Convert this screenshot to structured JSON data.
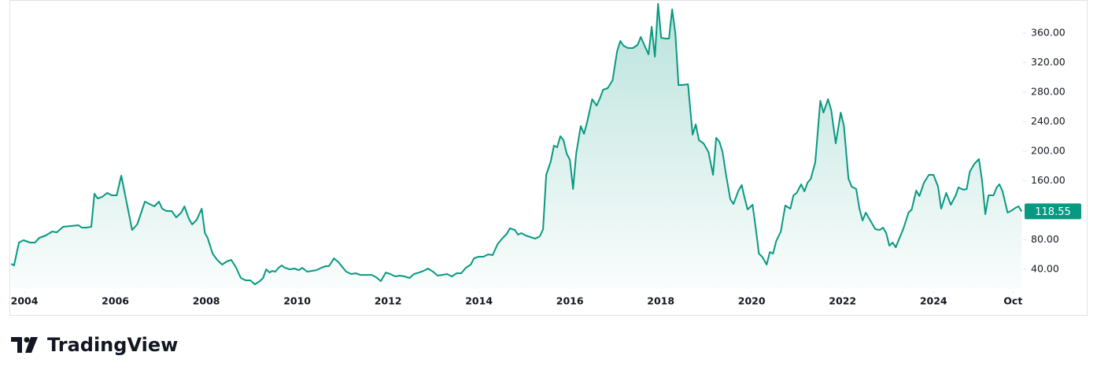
{
  "chart_data": {
    "type": "area",
    "x": [
      2003.71,
      2003.77,
      2003.88,
      2003.98,
      2004.12,
      2004.23,
      2004.33,
      2004.47,
      2004.61,
      2004.71,
      2004.85,
      2005.02,
      2005.19,
      2005.26,
      2005.37,
      2005.47,
      2005.54,
      2005.61,
      2005.71,
      2005.82,
      2005.92,
      2006.03,
      2006.13,
      2006.23,
      2006.37,
      2006.48,
      2006.58,
      2006.65,
      2006.75,
      2006.86,
      2006.96,
      2007.03,
      2007.13,
      2007.24,
      2007.34,
      2007.45,
      2007.52,
      2007.62,
      2007.69,
      2007.79,
      2007.9,
      2007.97,
      2008.03,
      2008.14,
      2008.24,
      2008.35,
      2008.45,
      2008.55,
      2008.66,
      2008.76,
      2008.87,
      2008.97,
      2009.07,
      2009.18,
      2009.25,
      2009.32,
      2009.39,
      2009.45,
      2009.52,
      2009.59,
      2009.66,
      2009.73,
      2009.84,
      2009.94,
      2010.04,
      2010.11,
      2010.22,
      2010.32,
      2010.42,
      2010.53,
      2010.63,
      2010.7,
      2010.81,
      2010.91,
      2011.01,
      2011.08,
      2011.19,
      2011.29,
      2011.39,
      2011.5,
      2011.64,
      2011.74,
      2011.84,
      2011.95,
      2012.05,
      2012.16,
      2012.26,
      2012.36,
      2012.47,
      2012.57,
      2012.68,
      2012.78,
      2012.88,
      2012.99,
      2013.09,
      2013.19,
      2013.3,
      2013.4,
      2013.51,
      2013.61,
      2013.71,
      2013.82,
      2013.89,
      2013.99,
      2014.1,
      2014.2,
      2014.3,
      2014.41,
      2014.51,
      2014.61,
      2014.68,
      2014.79,
      2014.86,
      2014.93,
      2015.03,
      2015.13,
      2015.24,
      2015.34,
      2015.41,
      2015.48,
      2015.58,
      2015.65,
      2015.72,
      2015.79,
      2015.86,
      2015.93,
      2016.0,
      2016.07,
      2016.14,
      2016.24,
      2016.31,
      2016.38,
      2016.49,
      2016.59,
      2016.66,
      2016.73,
      2016.83,
      2016.94,
      2017.04,
      2017.11,
      2017.18,
      2017.28,
      2017.39,
      2017.49,
      2017.56,
      2017.66,
      2017.73,
      2017.8,
      2017.87,
      2017.94,
      2018.01,
      2018.11,
      2018.18,
      2018.25,
      2018.32,
      2018.39,
      2018.46,
      2018.6,
      2018.7,
      2018.77,
      2018.84,
      2018.94,
      2019.05,
      2019.15,
      2019.22,
      2019.29,
      2019.36,
      2019.43,
      2019.53,
      2019.6,
      2019.71,
      2019.78,
      2019.84,
      2019.91,
      2020.02,
      2020.09,
      2020.16,
      2020.23,
      2020.33,
      2020.4,
      2020.47,
      2020.54,
      2020.64,
      2020.74,
      2020.85,
      2020.92,
      2020.99,
      2021.09,
      2021.16,
      2021.23,
      2021.3,
      2021.4,
      2021.51,
      2021.58,
      2021.68,
      2021.75,
      2021.85,
      2021.96,
      2022.03,
      2022.13,
      2022.2,
      2022.3,
      2022.37,
      2022.44,
      2022.51,
      2022.62,
      2022.72,
      2022.82,
      2022.89,
      2022.96,
      2023.03,
      2023.1,
      2023.17,
      2023.24,
      2023.34,
      2023.45,
      2023.52,
      2023.62,
      2023.69,
      2023.79,
      2023.9,
      2024.0,
      2024.1,
      2024.17,
      2024.28,
      2024.38,
      2024.49,
      2024.55,
      2024.66,
      2024.73,
      2024.8,
      2024.9,
      2025.0,
      2025.07,
      2025.14,
      2025.21,
      2025.32,
      2025.39,
      2025.45,
      2025.52,
      2025.63,
      2025.73,
      2025.8,
      2025.87,
      2025.94
    ],
    "values": [
      47.5,
      45.3,
      76.3,
      79.5,
      76.3,
      76.3,
      82.7,
      85.9,
      91.2,
      90.1,
      97.6,
      98.7,
      99.7,
      96.5,
      96.5,
      97.6,
      142.4,
      136,
      138.1,
      143.5,
      140.3,
      140.3,
      166.9,
      136,
      93.3,
      100.8,
      118.9,
      131.7,
      128.5,
      125.3,
      131.7,
      122.1,
      118.9,
      118.9,
      110.4,
      116.8,
      125.3,
      108.3,
      100.8,
      107.2,
      122.1,
      89.1,
      82.7,
      61.3,
      52.8,
      46.4,
      50.7,
      52.8,
      42.1,
      28.3,
      25.1,
      25.1,
      19.7,
      24,
      28.3,
      40,
      35.7,
      37.9,
      36.8,
      42.1,
      45.3,
      42.1,
      40,
      41.1,
      38.9,
      42.1,
      36.8,
      37.9,
      38.9,
      42.1,
      44.3,
      44.3,
      54.9,
      49.6,
      42.1,
      36.8,
      33.6,
      34.7,
      32.5,
      32.5,
      32.5,
      29.3,
      24,
      35.7,
      33.6,
      30.4,
      31.5,
      30.4,
      28.3,
      33.6,
      35.7,
      37.9,
      41.1,
      36.8,
      31.5,
      32.5,
      33.6,
      30.4,
      34.7,
      34.7,
      42.1,
      46.4,
      54.9,
      57.1,
      57.1,
      60.3,
      59.2,
      74.1,
      81.6,
      88,
      95.5,
      93.3,
      86.9,
      89.1,
      85.9,
      83.7,
      81.6,
      84.8,
      94.4,
      168,
      186.1,
      207.5,
      205.3,
      220.3,
      214.9,
      196.8,
      188.3,
      148.8,
      196.8,
      234.1,
      223.5,
      239.5,
      270.4,
      261.9,
      271.5,
      283.2,
      285.3,
      296,
      335.5,
      349.3,
      342.9,
      339.7,
      339.7,
      344,
      354.7,
      340.8,
      331.2,
      368.5,
      328,
      399.5,
      353.6,
      352.5,
      352.5,
      392,
      360,
      289.6,
      289.6,
      290.7,
      222.4,
      236.3,
      214.9,
      210.7,
      198.9,
      168,
      218.1,
      212.8,
      198.9,
      170.1,
      134.9,
      128.5,
      146.7,
      154.1,
      138.1,
      121.1,
      127.5,
      95.5,
      61.3,
      57.1,
      46.4,
      63.5,
      61.3,
      78.4,
      91.2,
      126.4,
      122.1,
      140.3,
      143.5,
      155.2,
      145.6,
      157.3,
      162.7,
      185.1,
      268.3,
      252.3,
      270.4,
      255.5,
      210.7,
      252.3,
      234.1,
      162.7,
      152,
      148.8,
      122.1,
      106.1,
      116.8,
      105.1,
      94.4,
      93.3,
      96.5,
      89.1,
      72,
      76.3,
      69.9,
      80.5,
      95.5,
      116.8,
      121.1,
      146.7,
      139.2,
      157.3,
      168,
      168,
      152,
      122.1,
      143.5,
      127.5,
      140.3,
      150.9,
      147.7,
      148.8,
      172.3,
      182.9,
      189.3,
      159.5,
      114.7,
      140.3,
      140.3,
      150.9,
      155.2,
      145.6,
      116.8,
      120,
      123.2,
      125.3,
      118.55
    ],
    "color": "#089981",
    "xlim": [
      2003.67,
      2025.97
    ],
    "xticks": [
      2004,
      2006,
      2008,
      2010,
      2012,
      2014,
      2016,
      2018,
      2020,
      2022,
      2024,
      {
        "value": 2025.75,
        "label": "Oct"
      }
    ],
    "ylim": [
      14,
      402
    ],
    "yticks": [
      {
        "value": 40,
        "label": "40.00"
      },
      {
        "value": 80,
        "label": "80.00"
      },
      {
        "value": 120,
        "label": "120.00"
      },
      {
        "value": 160,
        "label": "160.00"
      },
      {
        "value": 200,
        "label": "200.00"
      },
      {
        "value": 240,
        "label": "240.00"
      },
      {
        "value": 280,
        "label": "280.00"
      },
      {
        "value": 320,
        "label": "320.00"
      },
      {
        "value": 360,
        "label": "360.00"
      }
    ],
    "grid": false
  },
  "footer": {
    "brand": "TradingView"
  }
}
